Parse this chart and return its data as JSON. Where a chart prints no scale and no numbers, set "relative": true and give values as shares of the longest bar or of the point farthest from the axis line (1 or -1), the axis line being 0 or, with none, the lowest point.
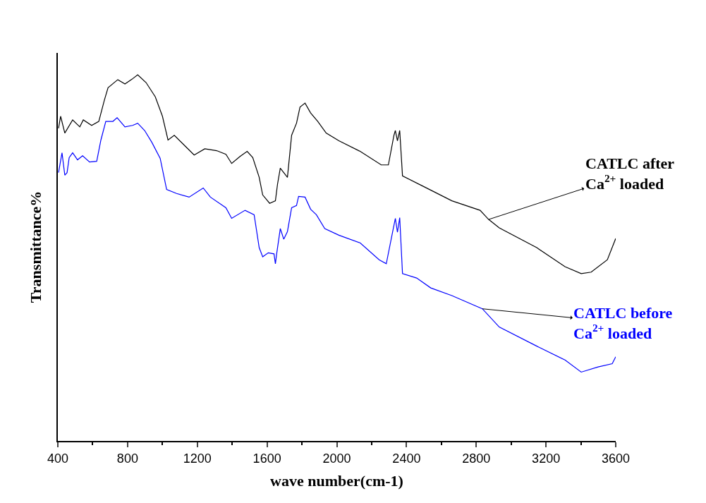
{
  "chart_data": {
    "type": "line",
    "relative": true,
    "xlabel": "wave number(cm-1)",
    "ylabel": "Transmittance%",
    "xlim": [
      400,
      3600
    ],
    "xticks": [
      400,
      800,
      1200,
      1600,
      2000,
      2400,
      2800,
      3200,
      3600
    ],
    "annotations": [
      {
        "text": "CATLC after\nCa$^{2+}$ loaded",
        "x": 2871,
        "y": 0.605
      },
      {
        "text": "CATLC before\nCa$^{2+}$ loaded",
        "x": 2835,
        "y": 0.361
      }
    ],
    "series": [
      {
        "color": "#000000",
        "x": [
          404,
          416,
          440,
          485,
          526,
          546,
          594,
          635,
          667,
          688,
          744,
          785,
          825,
          858,
          906,
          959,
          1000,
          1032,
          1068,
          1129,
          1182,
          1243,
          1311,
          1364,
          1397,
          1445,
          1486,
          1518,
          1555,
          1575,
          1615,
          1648,
          1660,
          1676,
          1717,
          1741,
          1769,
          1789,
          1818,
          1850,
          1891,
          1939,
          2012,
          2134,
          2255,
          2296,
          2328,
          2336,
          2348,
          2361,
          2377,
          2498,
          2660,
          2822,
          2871,
          2932,
          3147,
          3309,
          3402,
          3459,
          3552,
          3600
        ],
        "values": [
          0.854,
          0.887,
          0.841,
          0.877,
          0.858,
          0.877,
          0.862,
          0.873,
          0.931,
          0.965,
          0.987,
          0.975,
          0.988,
          1,
          0.979,
          0.94,
          0.887,
          0.822,
          0.835,
          0.806,
          0.781,
          0.798,
          0.793,
          0.783,
          0.758,
          0.777,
          0.791,
          0.774,
          0.72,
          0.672,
          0.649,
          0.656,
          0.701,
          0.745,
          0.72,
          0.835,
          0.868,
          0.912,
          0.923,
          0.896,
          0.873,
          0.841,
          0.82,
          0.791,
          0.754,
          0.754,
          0.835,
          0.848,
          0.82,
          0.848,
          0.724,
          0.695,
          0.656,
          0.63,
          0.605,
          0.582,
          0.528,
          0.476,
          0.457,
          0.461,
          0.495,
          0.553
        ]
      },
      {
        "color": "#0000ff",
        "x": [
          404,
          424,
          440,
          453,
          465,
          485,
          513,
          542,
          582,
          623,
          647,
          675,
          716,
          740,
          785,
          829,
          858,
          898,
          939,
          987,
          1024,
          1081,
          1153,
          1234,
          1275,
          1364,
          1397,
          1474,
          1526,
          1555,
          1575,
          1607,
          1640,
          1648,
          1656,
          1676,
          1696,
          1717,
          1741,
          1769,
          1781,
          1818,
          1850,
          1883,
          1931,
          2012,
          2134,
          2243,
          2284,
          2324,
          2336,
          2348,
          2361,
          2377,
          2458,
          2539,
          2660,
          2835,
          2932,
          3147,
          3309,
          3402,
          3499,
          3580,
          3600
        ],
        "values": [
          0.733,
          0.787,
          0.726,
          0.733,
          0.774,
          0.787,
          0.768,
          0.779,
          0.762,
          0.764,
          0.822,
          0.873,
          0.873,
          0.883,
          0.858,
          0.862,
          0.868,
          0.848,
          0.816,
          0.772,
          0.687,
          0.676,
          0.666,
          0.691,
          0.666,
          0.637,
          0.608,
          0.63,
          0.618,
          0.528,
          0.503,
          0.514,
          0.511,
          0.484,
          0.514,
          0.58,
          0.551,
          0.572,
          0.637,
          0.643,
          0.668,
          0.666,
          0.633,
          0.618,
          0.58,
          0.562,
          0.541,
          0.495,
          0.484,
          0.58,
          0.608,
          0.57,
          0.61,
          0.457,
          0.445,
          0.418,
          0.397,
          0.361,
          0.311,
          0.259,
          0.221,
          0.188,
          0.202,
          0.211,
          0.23
        ]
      }
    ]
  }
}
